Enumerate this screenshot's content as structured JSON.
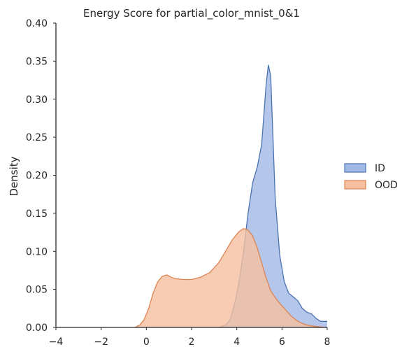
{
  "chart_data": {
    "type": "area",
    "title": "Energy Score for partial_color_mnist_0&1",
    "xlabel": "",
    "ylabel": "Density",
    "xlim": [
      -4,
      8
    ],
    "ylim": [
      0,
      0.4
    ],
    "xticks": [
      "−4",
      "−2",
      "0",
      "2",
      "4",
      "6",
      "8"
    ],
    "yticks": [
      "0.00",
      "0.05",
      "0.10",
      "0.15",
      "0.20",
      "0.25",
      "0.30",
      "0.35",
      "0.40"
    ],
    "grid": false,
    "legend_position": "right",
    "series": [
      {
        "name": "ID",
        "color": "#4c72b0",
        "fill": "#a1b9e6",
        "x": [
          3.2,
          3.5,
          3.7,
          3.9,
          4.1,
          4.3,
          4.5,
          4.7,
          4.9,
          5.1,
          5.3,
          5.4,
          5.5,
          5.6,
          5.7,
          5.9,
          6.1,
          6.3,
          6.5,
          6.7,
          6.9,
          7.1,
          7.3,
          7.5,
          7.7,
          8.0
        ],
        "y": [
          0.0,
          0.003,
          0.01,
          0.03,
          0.06,
          0.1,
          0.15,
          0.19,
          0.21,
          0.24,
          0.32,
          0.345,
          0.33,
          0.25,
          0.17,
          0.095,
          0.06,
          0.045,
          0.04,
          0.035,
          0.025,
          0.02,
          0.018,
          0.012,
          0.008,
          0.008
        ]
      },
      {
        "name": "OOD",
        "color": "#dd8452",
        "fill": "#f5bfa0",
        "x": [
          -0.5,
          -0.3,
          -0.1,
          0.1,
          0.3,
          0.5,
          0.7,
          0.9,
          1.1,
          1.3,
          1.6,
          2.0,
          2.4,
          2.8,
          3.2,
          3.5,
          3.8,
          4.1,
          4.3,
          4.5,
          4.7,
          4.9,
          5.1,
          5.3,
          5.5,
          5.8,
          6.1,
          6.4,
          6.7,
          7.0,
          7.3,
          7.6,
          7.9
        ],
        "y": [
          0.0,
          0.003,
          0.01,
          0.025,
          0.045,
          0.06,
          0.067,
          0.069,
          0.066,
          0.064,
          0.063,
          0.063,
          0.066,
          0.072,
          0.085,
          0.1,
          0.115,
          0.126,
          0.13,
          0.128,
          0.12,
          0.105,
          0.085,
          0.065,
          0.048,
          0.035,
          0.025,
          0.015,
          0.008,
          0.004,
          0.002,
          0.001,
          0.0
        ]
      }
    ]
  }
}
